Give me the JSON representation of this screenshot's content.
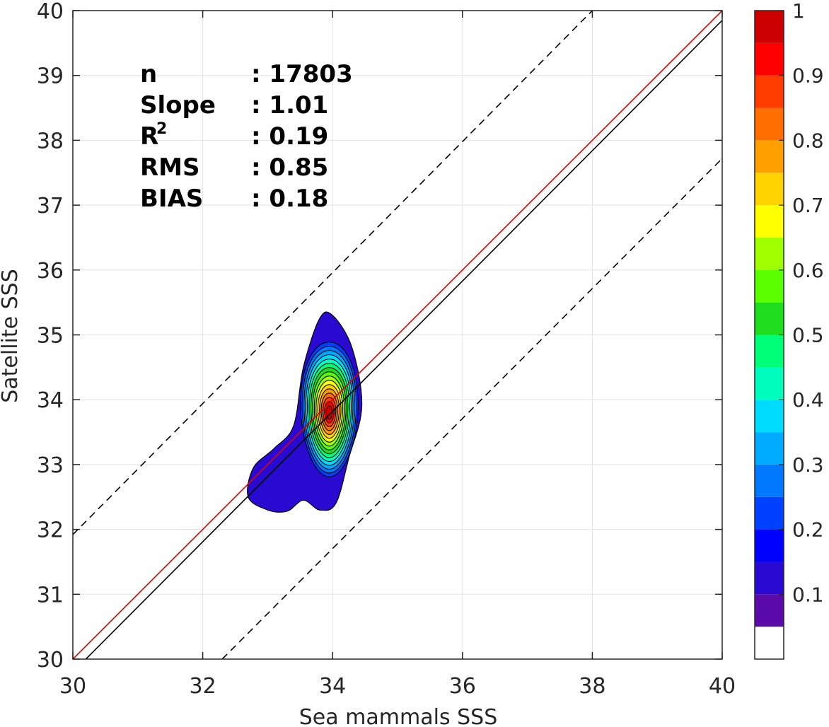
{
  "chart_data": {
    "type": "contour",
    "xlabel": "Sea mammals SSS",
    "ylabel": "Satellite SSS",
    "xlim": [
      30,
      40
    ],
    "ylim": [
      30,
      40
    ],
    "xticks": [
      30,
      32,
      34,
      36,
      38,
      40
    ],
    "yticks": [
      30,
      31,
      32,
      33,
      34,
      35,
      36,
      37,
      38,
      39,
      40
    ],
    "grid": true,
    "stats": [
      {
        "label": "n",
        "value": ": 17803"
      },
      {
        "label": "Slope",
        "value": ": 1.01"
      },
      {
        "label": "R",
        "sup": "2",
        "value": ": 0.19"
      },
      {
        "label": "RMS",
        "value": ": 0.85"
      },
      {
        "label": "BIAS",
        "value": ": 0.18"
      }
    ],
    "reference_lines": [
      {
        "kind": "identity",
        "color": "#e00000",
        "style": "solid",
        "from": [
          30,
          30
        ],
        "to": [
          40,
          40
        ]
      },
      {
        "kind": "regression",
        "color": "#000000",
        "style": "solid",
        "from": [
          30.2,
          30
        ],
        "to": [
          40,
          39.85
        ]
      },
      {
        "kind": "upper-bound",
        "color": "#000000",
        "style": "dashed",
        "from": [
          30,
          31.92
        ],
        "to": [
          38,
          40
        ]
      },
      {
        "kind": "lower-bound",
        "color": "#000000",
        "style": "dashed",
        "from": [
          32.3,
          30
        ],
        "to": [
          40,
          37.72
        ]
      }
    ],
    "density_peak": {
      "x": 33.95,
      "y": 33.8
    },
    "colorbar": {
      "ticks": [
        0.1,
        0.2,
        0.3,
        0.4,
        0.5,
        0.6,
        0.7,
        0.8,
        0.9,
        1
      ],
      "tick_labels": [
        "0.1",
        "0.2",
        "0.3",
        "0.4",
        "0.5",
        "0.6",
        "0.7",
        "0.8",
        "0.9",
        "1"
      ],
      "range": [
        0,
        1
      ],
      "levels": [
        0,
        0.05,
        0.1,
        0.15,
        0.2,
        0.25,
        0.3,
        0.35,
        0.4,
        0.45,
        0.5,
        0.55,
        0.6,
        0.65,
        0.7,
        0.75,
        0.8,
        0.85,
        0.9,
        0.95,
        1
      ],
      "colors": [
        "#ffffff",
        "#5a0aa8",
        "#2a0ad0",
        "#0000ff",
        "#0040ff",
        "#0078ff",
        "#00aaff",
        "#00dcff",
        "#00ffbf",
        "#00ff78",
        "#1fdc1f",
        "#5aff00",
        "#a0ff00",
        "#ffff00",
        "#ffd200",
        "#ffa000",
        "#ff6e00",
        "#ff3c00",
        "#ff0000",
        "#cc0000",
        "#8b0000"
      ]
    }
  }
}
